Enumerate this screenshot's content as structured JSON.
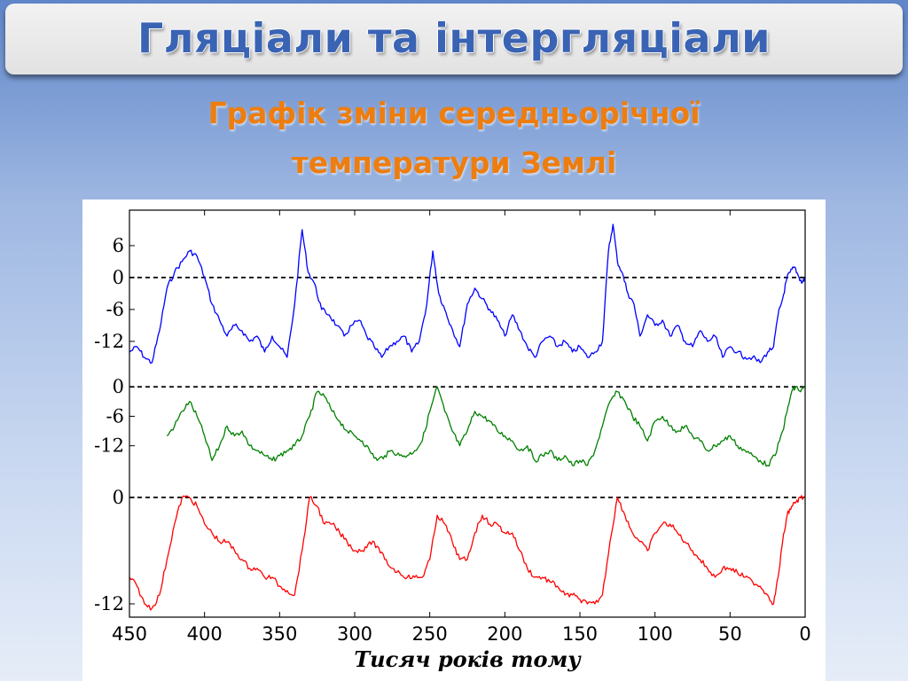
{
  "slide": {
    "title": "Гляціали та інтергляціали",
    "subtitle_line1": "Графік зміни середньорічної",
    "subtitle_line2": "температури Землі"
  },
  "chart_data": {
    "type": "line",
    "title": "",
    "xlabel": "Тисяч років тому",
    "ylabel": "",
    "xlim": [
      450,
      0
    ],
    "x_ticks": [
      450,
      400,
      350,
      300,
      250,
      200,
      150,
      100,
      50,
      0
    ],
    "grid": false,
    "legend": "none",
    "panels": [
      {
        "name": "",
        "color": "#0000ff",
        "y_ticks": [
          6,
          0,
          -6,
          -12
        ],
        "ylim": [
          -17,
          12
        ],
        "zero_line": "dashed",
        "x": [
          450,
          445,
          440,
          435,
          430,
          425,
          420,
          415,
          410,
          405,
          400,
          395,
          390,
          385,
          380,
          375,
          370,
          365,
          360,
          355,
          350,
          345,
          340,
          335,
          331,
          327,
          322,
          317,
          312,
          307,
          302,
          297,
          292,
          287,
          282,
          277,
          272,
          267,
          262,
          257,
          252,
          248,
          244,
          240,
          236,
          230,
          225,
          220,
          215,
          210,
          205,
          200,
          195,
          190,
          185,
          180,
          175,
          170,
          165,
          160,
          155,
          150,
          145,
          140,
          135,
          131,
          128,
          125,
          122,
          118,
          114,
          110,
          105,
          100,
          95,
          90,
          85,
          80,
          75,
          70,
          65,
          60,
          55,
          50,
          45,
          40,
          35,
          30,
          25,
          21,
          18,
          15,
          12,
          10,
          7,
          4,
          2,
          0
        ],
        "y": [
          -14,
          -13,
          -15,
          -16,
          -10,
          -2,
          1,
          3,
          5,
          4,
          0,
          -5,
          -8,
          -11,
          -9,
          -10,
          -12,
          -11,
          -14,
          -11,
          -13,
          -15,
          -5,
          9,
          1,
          -1,
          -6,
          -7,
          -9,
          -11,
          -9,
          -8,
          -11,
          -13,
          -15,
          -13,
          -12,
          -11,
          -14,
          -12,
          -5,
          5,
          -3,
          -6,
          -9,
          -13,
          -5,
          -2,
          -4,
          -6,
          -8,
          -11,
          -7,
          -10,
          -13,
          -15,
          -12,
          -11,
          -13,
          -12,
          -14,
          -13,
          -15,
          -14,
          -12,
          5,
          10,
          3,
          1,
          -3,
          -5,
          -11,
          -7,
          -9,
          -8,
          -11,
          -9,
          -12,
          -13,
          -10,
          -12,
          -11,
          -15,
          -13,
          -14,
          -15,
          -15,
          -16,
          -14,
          -13,
          -7,
          -4,
          0,
          1,
          2,
          0,
          -1,
          0
        ]
      },
      {
        "name": "",
        "color": "#008000",
        "y_ticks": [
          0,
          -6,
          -12
        ],
        "ylim": [
          -20,
          6
        ],
        "zero_line": "dashed",
        "x": [
          425,
          420,
          415,
          410,
          405,
          400,
          395,
          390,
          385,
          380,
          375,
          370,
          365,
          360,
          355,
          350,
          345,
          340,
          335,
          330,
          325,
          320,
          315,
          310,
          305,
          300,
          295,
          290,
          285,
          280,
          275,
          270,
          265,
          260,
          255,
          250,
          245,
          240,
          235,
          230,
          225,
          220,
          215,
          210,
          205,
          200,
          195,
          190,
          185,
          180,
          175,
          170,
          165,
          160,
          155,
          150,
          145,
          140,
          135,
          130,
          125,
          120,
          115,
          110,
          105,
          100,
          95,
          90,
          85,
          80,
          75,
          70,
          65,
          60,
          55,
          50,
          45,
          40,
          35,
          30,
          25,
          20,
          15,
          12,
          9,
          6,
          3,
          0
        ],
        "y": [
          -10,
          -8,
          -5,
          -3,
          -6,
          -10,
          -15,
          -12,
          -8,
          -10,
          -9,
          -12,
          -13,
          -14,
          -15,
          -14,
          -13,
          -12,
          -10,
          -6,
          -1,
          -2,
          -5,
          -7,
          -9,
          -10,
          -11,
          -13,
          -15,
          -14,
          -13,
          -14,
          -14,
          -13,
          -11,
          -5,
          0,
          -5,
          -9,
          -12,
          -9,
          -5,
          -6,
          -7,
          -9,
          -10,
          -11,
          -13,
          -12,
          -15,
          -14,
          -13,
          -15,
          -14,
          -16,
          -15,
          -16,
          -13,
          -8,
          -3,
          -1,
          -3,
          -6,
          -8,
          -11,
          -7,
          -6,
          -8,
          -9,
          -8,
          -10,
          -11,
          -13,
          -12,
          -11,
          -10,
          -12,
          -13,
          -14,
          -15,
          -16,
          -14,
          -9,
          -5,
          -1,
          0,
          -1,
          0
        ]
      },
      {
        "name": "",
        "color": "#ff0000",
        "y_ticks": [
          0,
          -12
        ],
        "ylim": [
          -13,
          1
        ],
        "zero_line": "dashed",
        "x": [
          450,
          445,
          440,
          435,
          430,
          425,
          420,
          415,
          410,
          405,
          400,
          395,
          390,
          385,
          380,
          375,
          370,
          365,
          360,
          355,
          350,
          345,
          340,
          335,
          330,
          325,
          320,
          315,
          310,
          305,
          300,
          295,
          290,
          285,
          280,
          275,
          270,
          265,
          260,
          255,
          250,
          245,
          240,
          235,
          230,
          225,
          220,
          215,
          210,
          205,
          200,
          195,
          190,
          185,
          180,
          175,
          170,
          165,
          160,
          155,
          150,
          145,
          140,
          135,
          130,
          125,
          120,
          115,
          110,
          105,
          100,
          95,
          90,
          85,
          80,
          75,
          70,
          65,
          60,
          55,
          50,
          45,
          40,
          35,
          30,
          25,
          21,
          18,
          15,
          12,
          9,
          6,
          3,
          0
        ],
        "y": [
          -9,
          -10,
          -12,
          -12.5,
          -11,
          -7,
          -3,
          0,
          0,
          -1,
          -3,
          -4,
          -5,
          -5,
          -6,
          -7,
          -8,
          -8,
          -9,
          -9,
          -10,
          -10.5,
          -11,
          -6,
          0,
          -1,
          -3,
          -3,
          -4,
          -5,
          -6,
          -6,
          -5,
          -5.5,
          -7,
          -8,
          -8.5,
          -9,
          -9,
          -9,
          -7,
          -2,
          -3,
          -5,
          -7,
          -7,
          -4,
          -2,
          -3,
          -3,
          -4,
          -4,
          -6,
          -8,
          -9,
          -9,
          -9.5,
          -10,
          -11,
          -11,
          -11.5,
          -12,
          -12,
          -11,
          -5,
          0,
          -2,
          -4,
          -5,
          -6,
          -4,
          -3,
          -3,
          -4,
          -5,
          -6,
          -7,
          -8,
          -9,
          -8,
          -8,
          -8.5,
          -9,
          -9.5,
          -10,
          -11,
          -12,
          -9,
          -5,
          -2,
          -1,
          -0.5,
          0,
          0
        ]
      }
    ]
  }
}
